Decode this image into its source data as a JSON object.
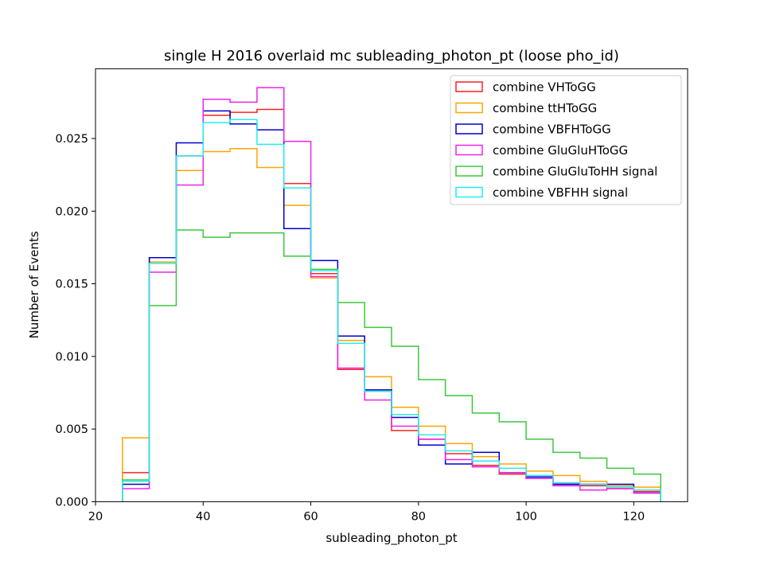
{
  "chart_data": {
    "type": "step",
    "title": "single H 2016 overlaid mc subleading_photon_pt (loose pho_id)",
    "xlabel": "subleading_photon_pt",
    "ylabel": "Number of Events",
    "xlim": [
      20,
      130
    ],
    "ylim": [
      0,
      0.0298
    ],
    "xticks": [
      20,
      40,
      60,
      80,
      100,
      120
    ],
    "yticks": [
      0.0,
      0.005,
      0.01,
      0.015,
      0.02,
      0.025
    ],
    "ytick_labels": [
      "0.000",
      "0.005",
      "0.010",
      "0.015",
      "0.020",
      "0.025"
    ],
    "grid": false,
    "legend_position": "top-right",
    "bin_edges": [
      25,
      30,
      35,
      40,
      45,
      50,
      55,
      60,
      65,
      70,
      75,
      80,
      85,
      90,
      95,
      100,
      105,
      110,
      115,
      120,
      125
    ],
    "series": [
      {
        "name": "combine VHToGG",
        "color": "#ff2020",
        "values": [
          0.002,
          0.0168,
          0.0238,
          0.0266,
          0.0268,
          0.027,
          0.0219,
          0.0157,
          0.0091,
          0.0076,
          0.0049,
          0.0043,
          0.0033,
          0.0025,
          0.0019,
          0.0016,
          0.0012,
          0.0011,
          0.0009,
          0.0007
        ]
      },
      {
        "name": "combine ttHToGG",
        "color": "#ffa500",
        "values": [
          0.0044,
          0.0165,
          0.0228,
          0.0241,
          0.0243,
          0.023,
          0.0204,
          0.0154,
          0.0111,
          0.0086,
          0.0065,
          0.0052,
          0.004,
          0.0031,
          0.0026,
          0.0021,
          0.0018,
          0.0014,
          0.0011,
          0.001
        ]
      },
      {
        "name": "combine VBFHToGG",
        "color": "#0000cc",
        "values": [
          0.0012,
          0.0168,
          0.0247,
          0.0269,
          0.026,
          0.0256,
          0.0188,
          0.0166,
          0.0114,
          0.0077,
          0.0058,
          0.0039,
          0.0026,
          0.0034,
          0.002,
          0.0017,
          0.0012,
          0.0012,
          0.0012,
          0.0006
        ]
      },
      {
        "name": "combine GluGluHToGG",
        "color": "#ee22ee",
        "values": [
          0.0009,
          0.0158,
          0.0218,
          0.0277,
          0.0275,
          0.0285,
          0.0248,
          0.0155,
          0.0092,
          0.007,
          0.0052,
          0.0043,
          0.0029,
          0.0024,
          0.002,
          0.0016,
          0.0011,
          0.0008,
          0.0009,
          0.0006
        ]
      },
      {
        "name": "combine GluGluToHH signal",
        "color": "#3cc83c",
        "values": [
          0.0015,
          0.0135,
          0.0187,
          0.0182,
          0.0185,
          0.0185,
          0.0169,
          0.016,
          0.0137,
          0.012,
          0.0107,
          0.0084,
          0.0073,
          0.0061,
          0.0055,
          0.0043,
          0.0034,
          0.003,
          0.0023,
          0.0019
        ]
      },
      {
        "name": "combine VBFHH signal",
        "color": "#22eeee",
        "values": [
          0.0014,
          0.0164,
          0.0238,
          0.0261,
          0.0263,
          0.0246,
          0.0216,
          0.0159,
          0.0109,
          0.0076,
          0.006,
          0.0046,
          0.0035,
          0.0028,
          0.0023,
          0.0018,
          0.0013,
          0.0012,
          0.001,
          0.0008
        ]
      }
    ]
  }
}
